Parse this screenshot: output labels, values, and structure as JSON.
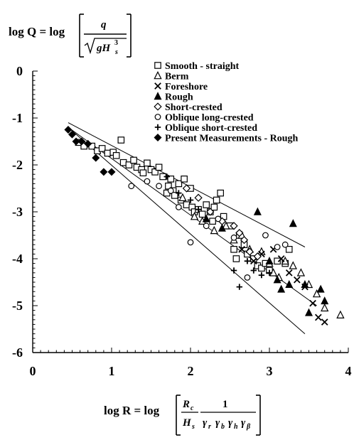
{
  "chart_data": {
    "type": "scatter",
    "title": "",
    "ylabel_formula": {
      "lhs": "log Q = log",
      "numerator": "q",
      "denominator": "gH",
      "denominator_sub": "s",
      "denominator_sup": "3"
    },
    "xlabel_formula": {
      "lhs": "log R = log",
      "frac1_num": "R",
      "frac1_num_sub": "c",
      "frac1_den": "H",
      "frac1_den_sub": "s",
      "frac2_num": "1",
      "frac2_den": "γ",
      "frac2_den_subs": [
        "r",
        "b",
        "h",
        "β"
      ]
    },
    "xlim": [
      0,
      4
    ],
    "ylim": [
      -6,
      0
    ],
    "x_ticks": [
      0,
      1,
      2,
      3,
      4
    ],
    "y_ticks": [
      0,
      -1,
      -2,
      -3,
      -4,
      -5,
      -6
    ],
    "x_tick_labels": [
      "0",
      "1",
      "2",
      "3",
      "4"
    ],
    "y_tick_labels": [
      "0",
      "-1",
      "-2",
      "-3",
      "-4",
      "-5",
      "-6"
    ],
    "grid": false,
    "legend_position": "top-right",
    "trend_lines": [
      {
        "name": "",
        "x": [
          0.45,
          3.45
        ],
        "y": [
          -1.1,
          -3.75
        ]
      },
      {
        "name": "",
        "x": [
          0.45,
          3.6
        ],
        "y": [
          -1.2,
          -5.0
        ]
      },
      {
        "name": "",
        "x": [
          0.45,
          3.45
        ],
        "y": [
          -1.2,
          -5.6
        ]
      }
    ],
    "series": [
      {
        "name": "Smooth - straight",
        "marker": "square-open",
        "points": [
          [
            0.58,
            -1.52
          ],
          [
            0.65,
            -1.6
          ],
          [
            0.75,
            -1.6
          ],
          [
            0.82,
            -1.7
          ],
          [
            0.88,
            -1.65
          ],
          [
            0.95,
            -1.75
          ],
          [
            1.02,
            -1.73
          ],
          [
            1.06,
            -1.8
          ],
          [
            1.12,
            -1.47
          ],
          [
            1.15,
            -1.95
          ],
          [
            1.22,
            -2.0
          ],
          [
            1.28,
            -1.9
          ],
          [
            1.32,
            -2.05
          ],
          [
            1.38,
            -2.1
          ],
          [
            1.4,
            -2.17
          ],
          [
            1.45,
            -1.96
          ],
          [
            1.5,
            -2.1
          ],
          [
            1.55,
            -2.15
          ],
          [
            1.6,
            -2.05
          ],
          [
            1.65,
            -2.25
          ],
          [
            1.7,
            -2.6
          ],
          [
            1.72,
            -2.45
          ],
          [
            1.75,
            -2.3
          ],
          [
            1.78,
            -2.55
          ],
          [
            1.8,
            -2.65
          ],
          [
            1.85,
            -2.4
          ],
          [
            1.88,
            -2.75
          ],
          [
            1.92,
            -2.3
          ],
          [
            1.95,
            -2.85
          ],
          [
            2.0,
            -2.5
          ],
          [
            2.02,
            -2.9
          ],
          [
            2.05,
            -3.0
          ],
          [
            2.1,
            -2.95
          ],
          [
            2.15,
            -3.05
          ],
          [
            2.2,
            -2.85
          ],
          [
            2.25,
            -3.0
          ],
          [
            2.28,
            -3.2
          ],
          [
            2.3,
            -2.9
          ],
          [
            2.33,
            -2.75
          ],
          [
            2.38,
            -2.6
          ],
          [
            2.42,
            -3.1
          ],
          [
            2.5,
            -3.3
          ],
          [
            2.55,
            -3.8
          ],
          [
            2.58,
            -4.0
          ],
          [
            2.62,
            -3.5
          ],
          [
            2.68,
            -3.7
          ],
          [
            2.72,
            -3.9
          ],
          [
            2.8,
            -4.0
          ],
          [
            2.85,
            -4.15
          ],
          [
            2.9,
            -4.2
          ],
          [
            2.95,
            -4.1
          ],
          [
            3.0,
            -4.25
          ],
          [
            3.1,
            -4.05
          ],
          [
            3.2,
            -4.1
          ],
          [
            3.25,
            -3.8
          ]
        ]
      },
      {
        "name": "Berm",
        "marker": "triangle-open",
        "points": [
          [
            1.9,
            -2.7
          ],
          [
            2.05,
            -3.1
          ],
          [
            2.15,
            -3.2
          ],
          [
            2.3,
            -3.4
          ],
          [
            2.45,
            -3.3
          ],
          [
            2.55,
            -3.6
          ],
          [
            2.65,
            -3.5
          ],
          [
            2.75,
            -3.8
          ],
          [
            2.9,
            -3.85
          ],
          [
            3.0,
            -4.1
          ],
          [
            3.05,
            -4.3
          ],
          [
            3.12,
            -4.4
          ],
          [
            3.2,
            -4.05
          ],
          [
            3.3,
            -4.15
          ],
          [
            3.4,
            -4.3
          ],
          [
            3.5,
            -4.55
          ],
          [
            3.6,
            -4.75
          ],
          [
            3.7,
            -5.05
          ],
          [
            3.9,
            -5.2
          ]
        ]
      },
      {
        "name": "Foreshore",
        "marker": "x",
        "points": [
          [
            2.65,
            -3.8
          ],
          [
            2.8,
            -4.05
          ],
          [
            2.9,
            -3.9
          ],
          [
            3.05,
            -3.8
          ],
          [
            3.15,
            -4.0
          ],
          [
            3.25,
            -4.3
          ],
          [
            3.35,
            -4.45
          ],
          [
            3.45,
            -4.6
          ],
          [
            3.55,
            -4.95
          ],
          [
            3.62,
            -5.25
          ],
          [
            3.7,
            -5.35
          ]
        ]
      },
      {
        "name": "Rough",
        "marker": "triangle-filled",
        "points": [
          [
            2.2,
            -3.15
          ],
          [
            2.4,
            -3.35
          ],
          [
            2.85,
            -3.0
          ],
          [
            3.3,
            -3.25
          ],
          [
            3.0,
            -4.05
          ],
          [
            3.1,
            -4.45
          ],
          [
            3.15,
            -4.65
          ],
          [
            3.25,
            -4.55
          ],
          [
            3.45,
            -4.55
          ],
          [
            3.65,
            -4.65
          ],
          [
            3.7,
            -4.9
          ],
          [
            3.5,
            -5.15
          ]
        ]
      },
      {
        "name": "Short-crested",
        "marker": "diamond-open",
        "points": [
          [
            1.95,
            -2.5
          ],
          [
            2.1,
            -2.7
          ],
          [
            2.25,
            -3.0
          ],
          [
            2.4,
            -3.2
          ],
          [
            2.55,
            -3.3
          ],
          [
            2.62,
            -3.45
          ],
          [
            2.68,
            -3.6
          ],
          [
            2.75,
            -3.85
          ],
          [
            2.85,
            -3.95
          ]
        ]
      },
      {
        "name": "Oblique long-crested",
        "marker": "circle-open",
        "points": [
          [
            1.25,
            -2.45
          ],
          [
            1.45,
            -2.35
          ],
          [
            1.6,
            -2.45
          ],
          [
            1.75,
            -2.55
          ],
          [
            1.85,
            -2.9
          ],
          [
            2.0,
            -3.65
          ],
          [
            2.2,
            -3.3
          ],
          [
            2.35,
            -3.15
          ],
          [
            2.55,
            -3.55
          ],
          [
            2.72,
            -4.4
          ],
          [
            2.95,
            -3.5
          ],
          [
            3.1,
            -3.75
          ],
          [
            3.2,
            -3.7
          ]
        ]
      },
      {
        "name": "Oblique short-crested",
        "marker": "plus",
        "points": [
          [
            1.7,
            -2.25
          ],
          [
            1.85,
            -2.6
          ],
          [
            2.0,
            -2.75
          ],
          [
            2.1,
            -2.95
          ],
          [
            2.55,
            -4.25
          ],
          [
            2.62,
            -4.6
          ],
          [
            2.72,
            -4.05
          ],
          [
            2.8,
            -4.25
          ],
          [
            2.9,
            -4.35
          ],
          [
            3.0,
            -4.3
          ]
        ]
      },
      {
        "name": "Present Measurements - Rough",
        "marker": "diamond-filled",
        "points": [
          [
            0.45,
            -1.25
          ],
          [
            0.5,
            -1.35
          ],
          [
            0.55,
            -1.5
          ],
          [
            0.62,
            -1.5
          ],
          [
            0.7,
            -1.55
          ],
          [
            0.8,
            -1.85
          ],
          [
            0.9,
            -2.15
          ],
          [
            1.0,
            -2.15
          ]
        ]
      }
    ]
  }
}
